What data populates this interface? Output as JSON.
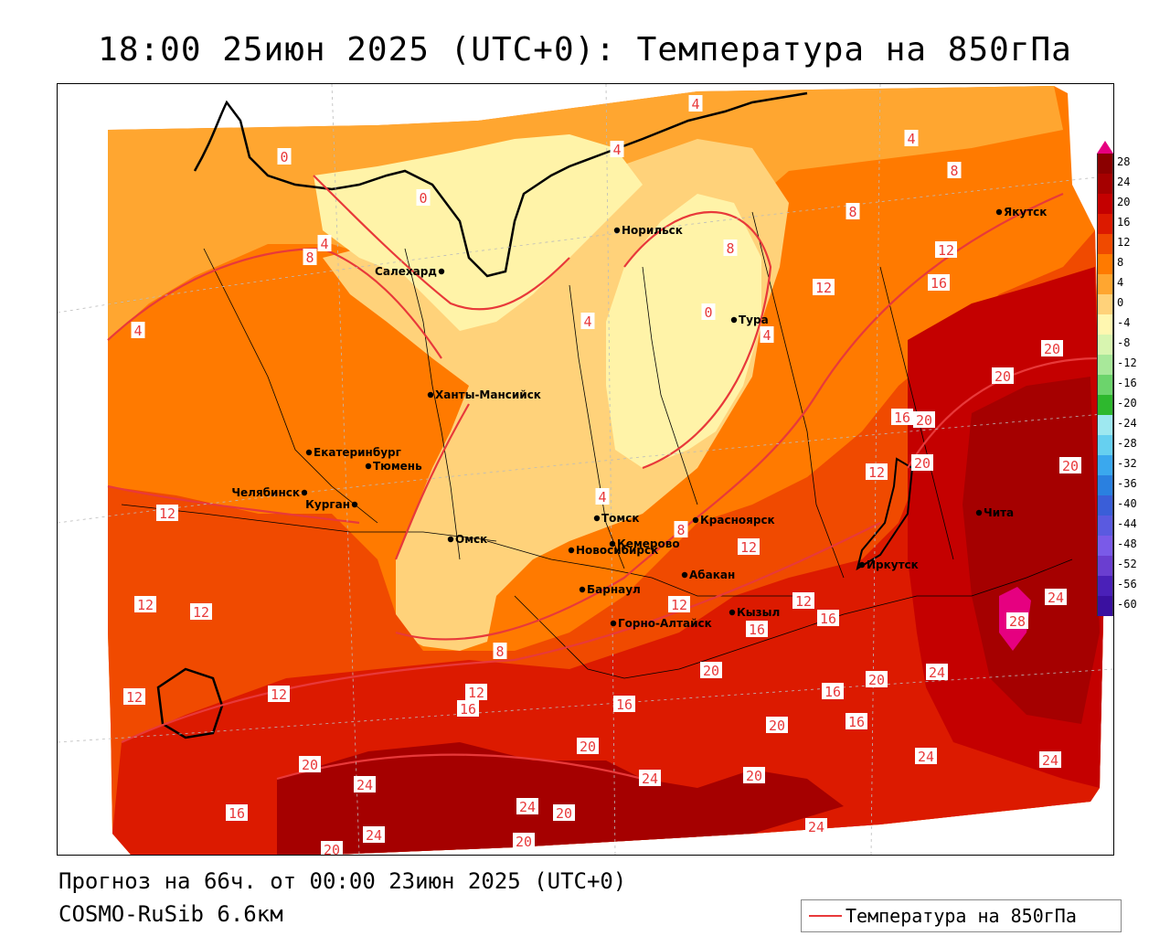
{
  "title": "18:00 25июн 2025 (UTC+0): Температура на 850гПа",
  "footer": {
    "forecast": "Прогноз на 66ч. от 00:00 23июн 2025 (UTC+0)",
    "model": "COSMO-RuSib 6.6км"
  },
  "legend": {
    "label": "Температура на 850гПа",
    "color": "#e8393a"
  },
  "colorbar": {
    "ticks": [
      "28",
      "24",
      "20",
      "16",
      "12",
      "8",
      "4",
      "0",
      "-4",
      "-8",
      "-12",
      "-16",
      "-20",
      "-24",
      "-28",
      "-32",
      "-36",
      "-40",
      "-44",
      "-48",
      "-52",
      "-56",
      "-60"
    ],
    "colors": [
      "#8b0000",
      "#a50000",
      "#c40000",
      "#dc1a00",
      "#f04a00",
      "#ff7a00",
      "#ffa630",
      "#ffd27a",
      "#fff7b0",
      "#d8f5b0",
      "#a8e89a",
      "#6cd46c",
      "#2eb82e",
      "#9ee8f0",
      "#66d0f0",
      "#3aa8ee",
      "#2a80e0",
      "#3a5ed8",
      "#5a5ae0",
      "#7a5ae8",
      "#6a3ed0",
      "#4a20b8",
      "#3a10a0"
    ]
  },
  "cities": [
    {
      "name": "Якутск"
    },
    {
      "name": "Норильск"
    },
    {
      "name": "Салехард"
    },
    {
      "name": "Тура"
    },
    {
      "name": "Ханты-Мансийск"
    },
    {
      "name": "Екатеринбург"
    },
    {
      "name": "Тюмень"
    },
    {
      "name": "Челябинск"
    },
    {
      "name": "Курган"
    },
    {
      "name": "Омск"
    },
    {
      "name": "Томск"
    },
    {
      "name": "Красноярск"
    },
    {
      "name": "Новосибирск"
    },
    {
      "name": "Кемерово"
    },
    {
      "name": "Абакан"
    },
    {
      "name": "Барнаул"
    },
    {
      "name": "Горно-Алтайск"
    },
    {
      "name": "Кызыл"
    },
    {
      "name": "Иркутск"
    },
    {
      "name": "Чита"
    }
  ],
  "contour_labels": [
    "0",
    "4",
    "8",
    "12",
    "16",
    "20",
    "24",
    "28"
  ]
}
